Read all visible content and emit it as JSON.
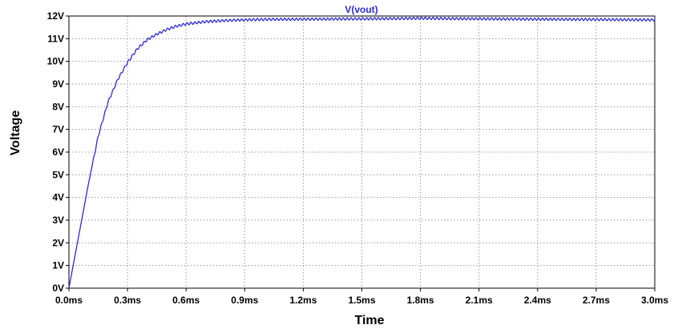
{
  "chart_data": {
    "type": "line",
    "xlabel": "Time",
    "ylabel": "Voltage",
    "xlim": [
      0,
      3.0
    ],
    "ylim": [
      0,
      12
    ],
    "grid": true,
    "legend": "top-center",
    "x_ticks": [
      "0.0ms",
      "0.3ms",
      "0.6ms",
      "0.9ms",
      "1.2ms",
      "1.5ms",
      "1.8ms",
      "2.1ms",
      "2.4ms",
      "2.7ms",
      "3.0ms"
    ],
    "y_ticks": [
      "0V",
      "1V",
      "2V",
      "3V",
      "4V",
      "5V",
      "6V",
      "7V",
      "8V",
      "9V",
      "10V",
      "11V",
      "12V"
    ],
    "series": [
      {
        "name": "V(vout)",
        "color": "#2b2bd6",
        "x": [
          0,
          0.05,
          0.1,
          0.15,
          0.2,
          0.25,
          0.3,
          0.35,
          0.4,
          0.45,
          0.5,
          0.55,
          0.6,
          0.7,
          0.8,
          0.9,
          1.0,
          1.2,
          1.4,
          1.6,
          1.8,
          2.0,
          2.2,
          2.4,
          2.6,
          2.8,
          3.0
        ],
        "values": [
          0,
          2.3,
          4.6,
          6.7,
          8.2,
          9.2,
          9.95,
          10.55,
          10.95,
          11.2,
          11.4,
          11.55,
          11.65,
          11.75,
          11.8,
          11.83,
          11.85,
          11.86,
          11.87,
          11.88,
          11.9,
          11.88,
          11.87,
          11.86,
          11.85,
          11.84,
          11.83
        ],
        "ripple_pp": 0.1
      }
    ]
  }
}
